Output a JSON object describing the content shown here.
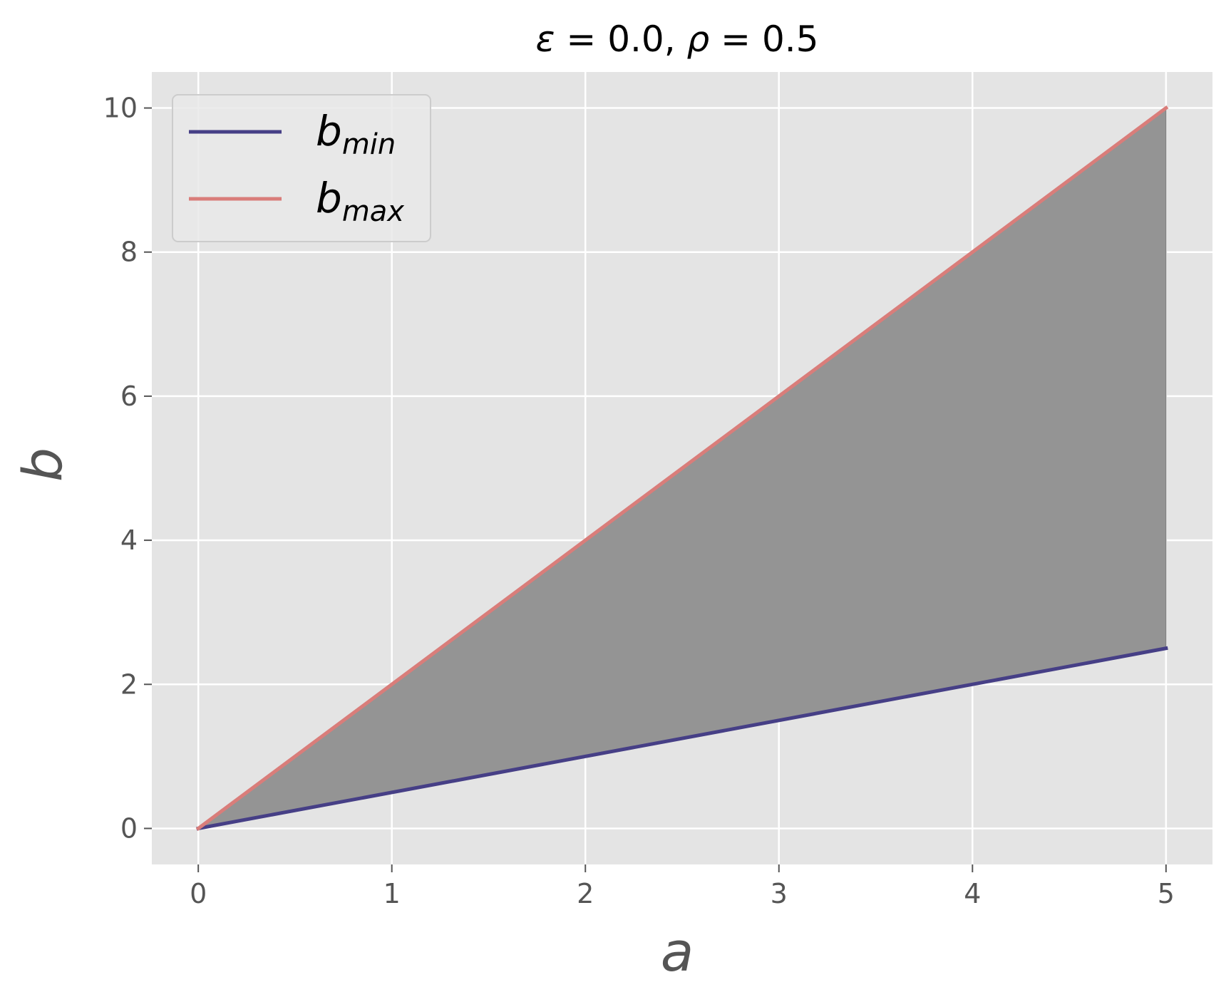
{
  "chart_data": {
    "type": "line",
    "title": "ε = 0.0, ρ = 0.5",
    "title_parts": {
      "eps_symbol": "ε",
      "eps_value": " = 0.0, ",
      "rho_symbol": "ρ",
      "rho_value": " = 0.5"
    },
    "xlabel": "a",
    "ylabel": "b",
    "xlim": [
      -0.24,
      5.24
    ],
    "ylim": [
      -0.5,
      10.5
    ],
    "xticks": [
      0,
      1,
      2,
      3,
      4,
      5
    ],
    "yticks": [
      0,
      2,
      4,
      6,
      8,
      10
    ],
    "grid": true,
    "legend_position": "top-left",
    "series": [
      {
        "name": "b_min",
        "legend_base": "b",
        "legend_sub": "min",
        "color": "#463f86",
        "x": [
          0,
          5
        ],
        "y": [
          0,
          2.5
        ]
      },
      {
        "name": "b_max",
        "legend_base": "b",
        "legend_sub": "max",
        "color": "#d97d7a",
        "x": [
          0,
          5
        ],
        "y": [
          0,
          10
        ]
      }
    ],
    "fill_between": {
      "lower": "b_min",
      "upper": "b_max",
      "color": "#949494"
    },
    "colors": {
      "plot_background": "#e4e4e4",
      "grid": "#ffffff",
      "tick_text": "#555555"
    }
  }
}
